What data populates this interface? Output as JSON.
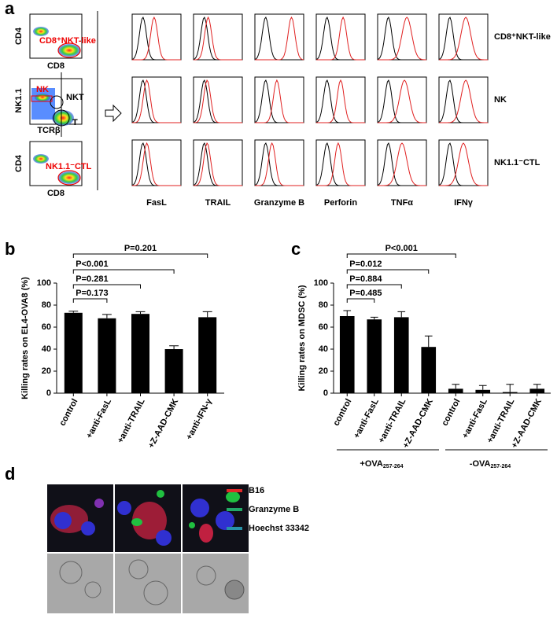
{
  "panel_a": {
    "panel_label": "a",
    "flow_plots": [
      {
        "y_axis": "CD4",
        "x_axis": "CD8",
        "gate": "CD8⁺NKT-like"
      },
      {
        "y_axis": "NK1.1",
        "x_axis": "TCRβ",
        "gates": [
          "NK",
          "NKT",
          "T"
        ]
      },
      {
        "y_axis": "CD4",
        "x_axis": "CD8",
        "gate": "NK1.1⁻CTL"
      }
    ],
    "histogram_columns": [
      "FasL",
      "TRAIL",
      "Granzyme B",
      "Perforin",
      "TNFα",
      "IFNγ"
    ],
    "histogram_rows": [
      "CD8⁺NKT-like",
      "NK",
      "NK1.1⁻CTL"
    ]
  },
  "chart_data": [
    {
      "type": "bar",
      "panel_label": "b",
      "ylabel": "Killing rates on EL4-OVA8 (%)",
      "categories": [
        "control",
        "+anti-FasL",
        "+anti-TRAIL",
        "+Z-AAD-CMK",
        "+anti-IFN-γ"
      ],
      "values": [
        73,
        68,
        72,
        40,
        69
      ],
      "errors": [
        1.5,
        3.5,
        2,
        3,
        5
      ],
      "color": "#000000",
      "ylim": [
        0,
        100
      ],
      "yticks": [
        0,
        20,
        40,
        60,
        80,
        100
      ],
      "annotations": [
        "P=0.173",
        "P=0.281",
        "P<0.001",
        "P=0.201"
      ]
    },
    {
      "type": "bar",
      "panel_label": "c",
      "ylabel": "Killing rates on MDSC (%)",
      "categories": [
        "control",
        "+anti-FasL",
        "+anti-TRAIL",
        "+Z-AAD-CMK",
        "control",
        "+anti-FasL",
        "+anti-TRAIL",
        "+Z-AAD-CMK"
      ],
      "values": [
        70,
        67,
        69,
        42,
        4,
        3,
        1,
        4
      ],
      "errors": [
        5,
        2,
        5,
        10,
        4,
        4,
        7,
        4
      ],
      "color": "#000000",
      "ylim": [
        0,
        100
      ],
      "yticks": [
        0,
        20,
        40,
        60,
        80,
        100
      ],
      "annotations": [
        "P=0.485",
        "P=0.884",
        "P=0.012",
        "P<0.001"
      ],
      "groups": [
        {
          "label": "+OVA",
          "subscript": "257-264"
        },
        {
          "label": "-OVA",
          "subscript": "257-264"
        }
      ]
    }
  ],
  "panel_d": {
    "panel_label": "d",
    "legend": [
      {
        "name": "B16",
        "color": "#e02828"
      },
      {
        "name": "Granzyme B",
        "color": "#22a866"
      },
      {
        "name": "Hoechst 33342",
        "color": "#2892a8"
      }
    ]
  }
}
